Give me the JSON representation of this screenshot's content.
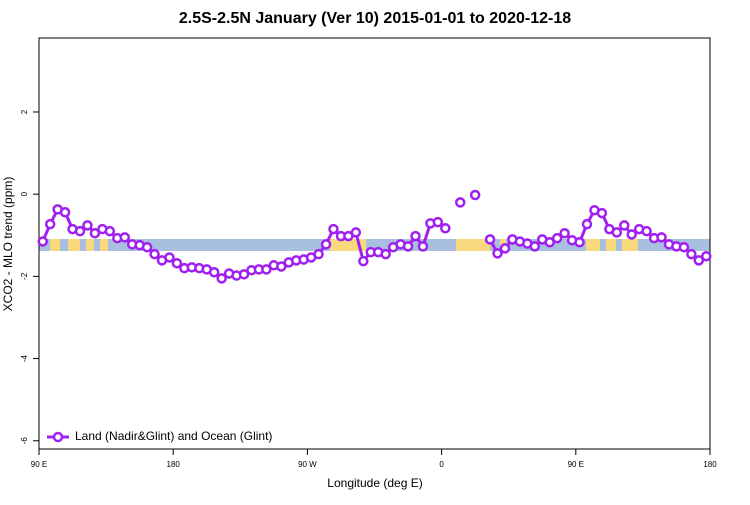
{
  "chart_data": {
    "type": "line",
    "title": "2.5S-2.5N January (Ver 10)   2015-01-01 to 2020-12-18",
    "x_label": "Longitude (deg E)",
    "y_label": "XCO2 - MLO trend (ppm)",
    "x": [
      92.5,
      97.5,
      102.5,
      107.5,
      112.5,
      117.5,
      122.5,
      127.5,
      132.5,
      137.5,
      142.5,
      147.5,
      152.5,
      157.5,
      162.5,
      167.5,
      172.5,
      177.5,
      182.5,
      187.5,
      192.5,
      197.5,
      202.5,
      207.5,
      212.5,
      217.5,
      222.5,
      227.5,
      232.5,
      237.5,
      242.5,
      247.5,
      252.5,
      257.5,
      262.5,
      267.5,
      272.5,
      277.5,
      282.5,
      287.5,
      292.5,
      297.5,
      302.5,
      307.5,
      312.5,
      317.5,
      322.5,
      327.5,
      332.5,
      337.5,
      342.5,
      347.5,
      352.5,
      357.5,
      362.5,
      367.5,
      372.5,
      377.5,
      382.5,
      387.5,
      392.5,
      397.5,
      402.5,
      407.5,
      412.5,
      417.5,
      422.5,
      427.5,
      432.5,
      437.5,
      442.5,
      447.5,
      452.5,
      457.5,
      462.5,
      467.5,
      472.5,
      477.5,
      482.5,
      487.5,
      492.5,
      497.5,
      502.5,
      507.5,
      512.5,
      517.5,
      522.5,
      527.5,
      532.5,
      537.5
    ],
    "series": [
      {
        "name": "Land (Nadir&Glint) and Ocean (Glint)",
        "color": "#a020f0",
        "values": [
          -1.15,
          -0.73,
          -0.37,
          -0.44,
          -0.85,
          -0.9,
          -0.76,
          -0.95,
          -0.85,
          -0.9,
          -1.07,
          -1.05,
          -1.22,
          -1.24,
          -1.29,
          -1.46,
          -1.61,
          -1.54,
          -1.68,
          -1.8,
          -1.78,
          -1.8,
          -1.83,
          -1.9,
          -2.05,
          -1.93,
          -1.98,
          -1.95,
          -1.85,
          -1.83,
          -1.83,
          -1.73,
          -1.76,
          -1.66,
          -1.61,
          -1.59,
          -1.54,
          -1.46,
          -1.22,
          -0.85,
          -1.02,
          -1.02,
          -0.93,
          -1.63,
          -1.41,
          -1.41,
          -1.46,
          -1.29,
          -1.22,
          -1.27,
          -1.02,
          -1.27,
          -0.71,
          -0.68,
          -0.83,
          null,
          -0.2,
          null,
          -0.02,
          null,
          -1.1,
          -1.44,
          -1.32,
          -1.1,
          -1.15,
          -1.2,
          -1.27,
          -1.1,
          -1.17,
          -1.07,
          -0.95,
          -1.12,
          -1.17,
          -0.73,
          -0.39,
          -0.46,
          -0.85,
          -0.93,
          -0.76,
          -0.98,
          -0.85,
          -0.9,
          -1.07,
          -1.05,
          -1.22,
          -1.27,
          -1.29,
          -1.46,
          -1.61,
          -1.51
        ]
      }
    ],
    "xlim": [
      90,
      540
    ],
    "xticks": [
      {
        "value": 90,
        "label": "90 E"
      },
      180,
      {
        "value": 270,
        "label": "90 W"
      },
      {
        "value": 360,
        "label": "0"
      },
      {
        "value": 450,
        "label": "90 E"
      },
      {
        "value": 540,
        "label": "180"
      }
    ],
    "ylim": [
      -6.2,
      3.8
    ],
    "yticks": [
      -6,
      -4,
      -2,
      0,
      2
    ],
    "grid": false,
    "legend": "bottom-left"
  }
}
